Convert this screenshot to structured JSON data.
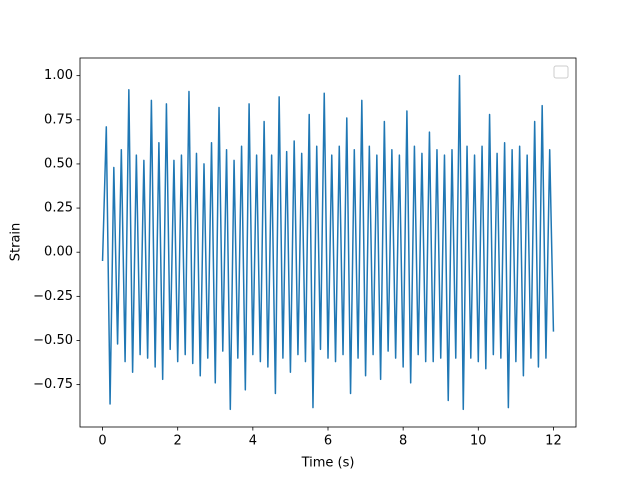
{
  "chart_data": {
    "type": "line",
    "xlabel": "Time (s)",
    "ylabel": "Strain",
    "x": [
      0,
      0.1,
      0.2,
      0.3,
      0.4,
      0.5,
      0.6,
      0.7,
      0.8,
      0.9,
      1.0,
      1.1,
      1.2,
      1.3,
      1.4,
      1.5,
      1.6,
      1.7,
      1.8,
      1.9,
      2.0,
      2.1,
      2.2,
      2.3,
      2.4,
      2.5,
      2.6,
      2.7,
      2.8,
      2.9,
      3.0,
      3.1,
      3.2,
      3.3,
      3.4,
      3.5,
      3.6,
      3.7,
      3.8,
      3.9,
      4.0,
      4.1,
      4.2,
      4.3,
      4.4,
      4.5,
      4.6,
      4.7,
      4.8,
      4.9,
      5.0,
      5.1,
      5.2,
      5.3,
      5.4,
      5.5,
      5.6,
      5.7,
      5.8,
      5.9,
      6.0,
      6.1,
      6.2,
      6.3,
      6.4,
      6.5,
      6.6,
      6.7,
      6.8,
      6.9,
      7.0,
      7.1,
      7.2,
      7.3,
      7.4,
      7.5,
      7.6,
      7.7,
      7.8,
      7.9,
      8.0,
      8.1,
      8.2,
      8.3,
      8.4,
      8.5,
      8.6,
      8.7,
      8.8,
      8.9,
      9.0,
      9.1,
      9.2,
      9.3,
      9.4,
      9.5,
      9.6,
      9.7,
      9.8,
      9.9,
      10.0,
      10.1,
      10.2,
      10.3,
      10.4,
      10.5,
      10.6,
      10.7,
      10.8,
      10.9,
      11.0,
      11.1,
      11.2,
      11.3,
      11.4,
      11.5,
      11.6,
      11.7,
      11.8,
      11.9,
      12.0
    ],
    "series": [
      {
        "color": "#1f77b4",
        "values": [
          -0.05,
          0.71,
          -0.86,
          0.48,
          -0.52,
          0.58,
          -0.62,
          0.92,
          -0.68,
          0.55,
          -0.58,
          0.52,
          -0.6,
          0.86,
          -0.65,
          0.62,
          -0.72,
          0.84,
          -0.55,
          0.52,
          -0.62,
          0.55,
          -0.58,
          0.91,
          -0.63,
          0.56,
          -0.7,
          0.5,
          -0.6,
          0.62,
          -0.74,
          0.82,
          -0.56,
          0.58,
          -0.89,
          0.52,
          -0.6,
          0.6,
          -0.78,
          0.84,
          -0.58,
          0.55,
          -0.62,
          0.74,
          -0.65,
          0.55,
          -0.8,
          0.88,
          -0.6,
          0.57,
          -0.68,
          0.63,
          -0.58,
          0.56,
          -0.62,
          0.78,
          -0.88,
          0.6,
          -0.55,
          0.9,
          -0.6,
          0.55,
          -0.62,
          0.6,
          -0.58,
          0.76,
          -0.8,
          0.58,
          -0.6,
          0.86,
          -0.7,
          0.6,
          -0.58,
          0.55,
          -0.72,
          0.74,
          -0.56,
          0.58,
          -0.6,
          0.55,
          -0.65,
          0.8,
          -0.74,
          0.6,
          -0.58,
          0.56,
          -0.62,
          0.68,
          -0.62,
          0.58,
          -0.6,
          0.55,
          -0.84,
          0.58,
          -0.6,
          1.0,
          -0.89,
          0.6,
          -0.6,
          0.55,
          -0.62,
          0.6,
          -0.66,
          0.78,
          -0.58,
          0.56,
          -0.6,
          0.62,
          -0.88,
          0.58,
          -0.62,
          0.6,
          -0.7,
          0.55,
          -0.6,
          0.74,
          -0.65,
          0.83,
          -0.6,
          0.58,
          -0.45
        ]
      }
    ],
    "xlim": [
      -0.6,
      12.6
    ],
    "ylim": [
      -0.99,
      1.1
    ],
    "xticks": [
      0,
      2,
      4,
      6,
      8,
      10,
      12
    ],
    "yticks": [
      {
        "value": -0.75,
        "label": "−0.75"
      },
      {
        "value": -0.5,
        "label": "−0.50"
      },
      {
        "value": -0.25,
        "label": "−0.25"
      },
      {
        "value": 0,
        "label": "0.00"
      },
      0.25,
      {
        "value": 0.5,
        "label": "0.50"
      },
      0.75,
      {
        "value": 1,
        "label": "1.00"
      }
    ],
    "legend": "upper right"
  }
}
